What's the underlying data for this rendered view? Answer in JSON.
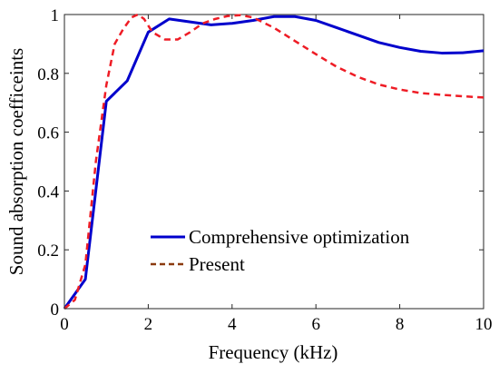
{
  "chart_data": {
    "type": "line",
    "xlabel": "Frequency (kHz)",
    "ylabel": "Sound absorption coefficeints",
    "xlim": [
      0,
      10
    ],
    "ylim": [
      0,
      1
    ],
    "xticks": [
      0,
      2,
      4,
      6,
      8,
      10
    ],
    "yticks": [
      0,
      0.2,
      0.4,
      0.6,
      0.8,
      1
    ],
    "xtick_labels": [
      "0",
      "2",
      "4",
      "6",
      "8",
      "10"
    ],
    "ytick_labels": [
      "0",
      "0.2",
      "0.4",
      "0.6",
      "0.8",
      "1"
    ],
    "grid": false,
    "legend_position": "bottom-center",
    "series": [
      {
        "name": "Comprehensive optimization",
        "color": "#0000cc",
        "style": "solid",
        "x": [
          0,
          0.5,
          1.0,
          1.5,
          2.0,
          2.5,
          3.0,
          3.5,
          4.0,
          4.5,
          5.0,
          5.5,
          6.0,
          6.5,
          7.0,
          7.5,
          8.0,
          8.5,
          9.0,
          9.5,
          10.0
        ],
        "y": [
          0,
          0.1,
          0.705,
          0.775,
          0.94,
          0.985,
          0.975,
          0.965,
          0.97,
          0.98,
          0.993,
          0.993,
          0.98,
          0.955,
          0.93,
          0.905,
          0.888,
          0.875,
          0.869,
          0.87,
          0.877
        ]
      },
      {
        "name": "Present",
        "color": "#ee1c25",
        "style": "dashed",
        "x": [
          0,
          0.25,
          0.5,
          0.75,
          1.0,
          1.2,
          1.4,
          1.6,
          1.75,
          1.9,
          2.1,
          2.4,
          2.7,
          3.0,
          3.3,
          3.6,
          3.9,
          4.2,
          4.5,
          5.0,
          5.5,
          6.0,
          6.5,
          7.0,
          7.5,
          8.0,
          8.5,
          9.0,
          9.5,
          10.0
        ],
        "y": [
          0,
          0.03,
          0.15,
          0.5,
          0.76,
          0.9,
          0.95,
          0.99,
          1.0,
          0.985,
          0.94,
          0.915,
          0.915,
          0.94,
          0.97,
          0.985,
          0.995,
          0.998,
          0.99,
          0.955,
          0.91,
          0.865,
          0.822,
          0.788,
          0.762,
          0.745,
          0.733,
          0.727,
          0.722,
          0.718
        ]
      }
    ]
  },
  "legend": {
    "comprehensive_label": "Comprehensive optimization",
    "present_label": "Present"
  }
}
